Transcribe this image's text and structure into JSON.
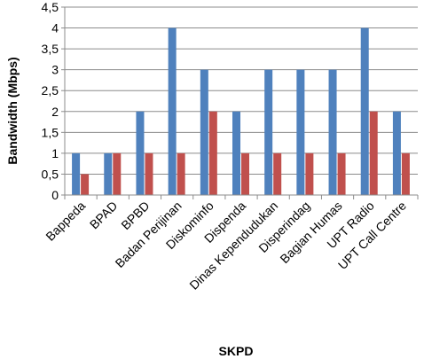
{
  "chart_data": {
    "type": "bar",
    "categories": [
      "Bappeda",
      "BPAD",
      "BPBD",
      "Badan Perijinan",
      "Diskominfo",
      "Dispenda",
      "Dinas Kependudukan",
      "Disperindag",
      "Bagian Humas",
      "UPT Radio",
      "UPT Call Centre"
    ],
    "series": [
      {
        "color": "#4f81bd",
        "values": [
          1,
          1,
          2,
          4,
          3,
          2,
          3,
          3,
          3,
          4,
          2
        ]
      },
      {
        "color": "#c0504d",
        "values": [
          0.5,
          1,
          1,
          1,
          2,
          1,
          1,
          1,
          1,
          2,
          1
        ]
      }
    ],
    "xlabel": "SKPD",
    "ylabel": "Bandwidth (Mbps)",
    "ylim": [
      0,
      4.5
    ],
    "yticks": [
      "0",
      "0,5",
      "1",
      "1,5",
      "2",
      "2,5",
      "3",
      "3,5",
      "4",
      "4,5"
    ],
    "grid": true,
    "legend": "none"
  }
}
